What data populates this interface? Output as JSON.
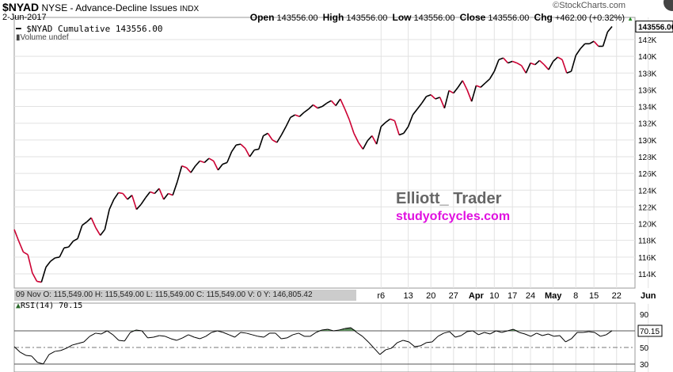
{
  "header": {
    "symbol": "$NYAD",
    "name": "NYSE - Advance-Decline Issues",
    "exchange": "INDX",
    "date": "2-Jun-2017",
    "open_label": "Open",
    "open": "143556.00",
    "high_label": "High",
    "high": "143556.00",
    "low_label": "Low",
    "low": "143556.00",
    "close_label": "Close",
    "close": "143556.00",
    "chg_label": "Chg",
    "chg": "+462.00 (+0.32%)",
    "brand": "©StockCharts.com"
  },
  "legend": {
    "series": "$NYAD Cumulative 143556.00",
    "volume": "Volume undef",
    "rsi": "RSI(14) 70.15"
  },
  "info_bar": "09 Nov O: 115,549.00  H: 115,549.00  L: 115,549.00  C: 115,549.00  V: 0  Y: 146,805.42",
  "watermark": {
    "line1": "Elliott_ Trader",
    "line2": "studyofcycles.com"
  },
  "colors": {
    "up": "#000000",
    "down": "#cc0033",
    "rsi_fill": "#5a8a5a",
    "wm": "#e010e0"
  },
  "chart_data": [
    {
      "type": "line",
      "title": "$NYAD NYSE - Advance-Decline Issues",
      "ylabel": "",
      "ylim": [
        112000,
        144000
      ],
      "grid": true,
      "yticks": [
        114000,
        116000,
        118000,
        120000,
        122000,
        124000,
        126000,
        128000,
        130000,
        132000,
        134000,
        136000,
        138000,
        140000,
        142000
      ],
      "ytick_labels": [
        "114K",
        "116K",
        "118K",
        "120K",
        "122K",
        "124K",
        "126K",
        "128K",
        "130K",
        "132K",
        "134K",
        "136K",
        "138K",
        "140K",
        "142K"
      ],
      "last_value_label": "143556.00",
      "xticks": [
        {
          "i": 81,
          "label": "r6"
        },
        {
          "i": 87,
          "label": "13"
        },
        {
          "i": 92,
          "label": "20"
        },
        {
          "i": 97,
          "label": "27"
        },
        {
          "i": 102,
          "label": "Apr",
          "bold": true
        },
        {
          "i": 106,
          "label": "10"
        },
        {
          "i": 110,
          "label": "17"
        },
        {
          "i": 114,
          "label": "24"
        },
        {
          "i": 119,
          "label": "May",
          "bold": true
        },
        {
          "i": 124,
          "label": "8"
        },
        {
          "i": 128,
          "label": "15"
        },
        {
          "i": 133,
          "label": "22"
        },
        {
          "i": 140,
          "label": "Jun",
          "bold": true
        }
      ],
      "values": [
        119.3,
        117.9,
        116.6,
        116.3,
        114.1,
        113.1,
        113.0,
        114.8,
        115.5,
        115.9,
        116.0,
        117.1,
        117.2,
        117.9,
        118.2,
        119.8,
        120.2,
        120.7,
        119.5,
        118.6,
        119.3,
        121.7,
        122.9,
        123.7,
        123.6,
        122.9,
        123.4,
        121.7,
        122.3,
        123.1,
        123.8,
        123.6,
        124.2,
        122.9,
        123.6,
        123.4,
        125.0,
        126.9,
        126.7,
        126.1,
        126.9,
        127.5,
        127.3,
        127.8,
        127.5,
        126.4,
        127.1,
        127.3,
        128.6,
        129.4,
        129.5,
        129.0,
        128.0,
        128.8,
        128.9,
        130.5,
        130.8,
        130.0,
        129.7,
        130.6,
        131.6,
        132.7,
        133.0,
        132.8,
        133.3,
        133.7,
        134.2,
        133.8,
        134.0,
        134.4,
        134.7,
        134.1,
        134.9,
        133.7,
        132.4,
        130.8,
        129.7,
        128.9,
        129.9,
        130.5,
        129.5,
        131.6,
        132.1,
        132.5,
        132.3,
        130.6,
        130.8,
        131.6,
        133.0,
        133.7,
        134.4,
        135.2,
        135.4,
        134.9,
        135.1,
        133.8,
        135.9,
        135.6,
        136.3,
        137.1,
        136.0,
        134.6,
        136.5,
        136.3,
        136.8,
        137.3,
        138.2,
        139.6,
        139.8,
        139.2,
        139.4,
        139.2,
        138.9,
        138.0,
        139.2,
        139.0,
        139.5,
        139.0,
        138.4,
        139.4,
        139.9,
        139.6,
        138.0,
        138.2,
        140.1,
        140.9,
        141.5,
        141.5,
        141.8,
        141.2,
        141.2,
        142.9,
        143.556
      ],
      "value_unit": "thousands"
    },
    {
      "type": "line",
      "title": "RSI(14)",
      "ylim": [
        25,
        100
      ],
      "yticks": [
        30,
        50,
        90
      ],
      "ytick_labels": [
        "30",
        "50",
        "90"
      ],
      "overbought": 70,
      "oversold": 30,
      "last_value_label": "70.15",
      "values": [
        51,
        44.4,
        40.5,
        39.6,
        32,
        30.1,
        41.5,
        45.3,
        46.3,
        49.1,
        52.9,
        54.8,
        56.7,
        63.4,
        67.2,
        66.2,
        70,
        65.3,
        58.6,
        57.7,
        68.1,
        71,
        70,
        61.5,
        62.4,
        64.3,
        63.4,
        60.5,
        58.6,
        61.5,
        65.3,
        62.4,
        60.5,
        63.4,
        68.1,
        70,
        68.1,
        65.3,
        62.4,
        68.1,
        67.2,
        65.3,
        63.4,
        62.4,
        67.2,
        67.2,
        60.5,
        61.5,
        65.3,
        67.2,
        63.4,
        63.4,
        68.1,
        71,
        71.9,
        70,
        71,
        72.9,
        73.8,
        68.1,
        63.4,
        56.7,
        49.1,
        41.5,
        47.2,
        49.1,
        55.8,
        58.6,
        56.7,
        51,
        52,
        55.8,
        56.7,
        63.4,
        67.2,
        69,
        62.4,
        64.3,
        69,
        70,
        65.3,
        68.1,
        66.2,
        70,
        68.1,
        70,
        71.9,
        68.1,
        66.2,
        63.4,
        67.2,
        64.3,
        66.2,
        63.4,
        64.3,
        56.7,
        60.5,
        68.1,
        68.1,
        69,
        68.1,
        63.4,
        65.3,
        70.15
      ]
    }
  ]
}
